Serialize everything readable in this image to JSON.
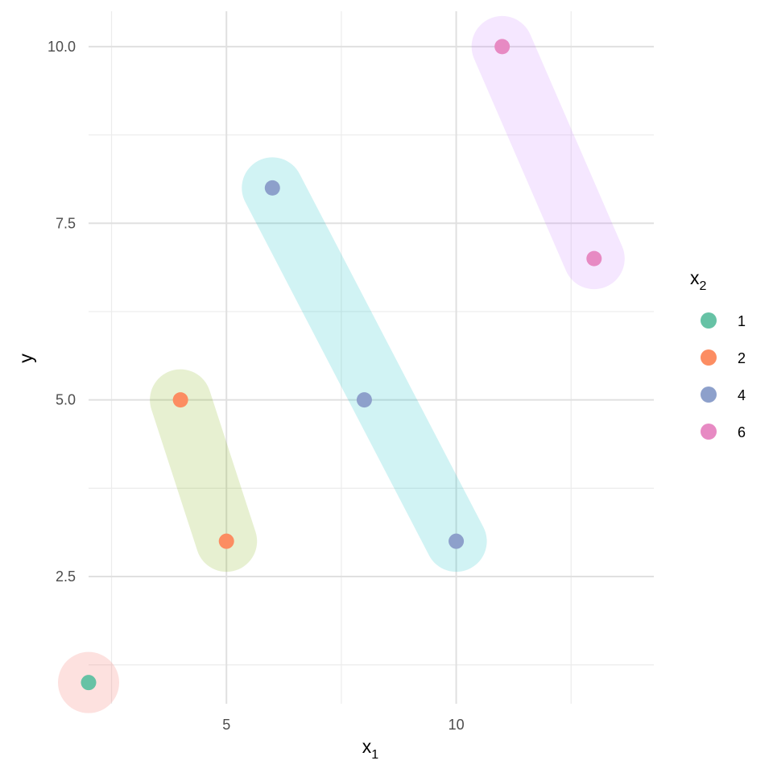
{
  "chart_data": {
    "type": "scatter",
    "title": "",
    "xlabel": "x",
    "xlabel_sub": "1",
    "ylabel": "y",
    "xlim": [
      2,
      14.3
    ],
    "ylim": [
      0.7,
      10.5
    ],
    "x_ticks": [
      5,
      10
    ],
    "x_tick_labels": [
      "5",
      "10"
    ],
    "y_ticks": [
      2.5,
      5.0,
      7.5,
      10.0
    ],
    "y_tick_labels": [
      "2.5",
      "5.0",
      "7.5",
      "10.0"
    ],
    "x_minor_ticks": [
      2.5,
      7.5,
      12.5
    ],
    "y_minor_ticks": [
      1.25,
      3.75,
      6.25,
      8.75
    ],
    "grid": true,
    "legend": {
      "title": "x",
      "title_sub": "2",
      "position": "right",
      "entries": [
        {
          "label": "1",
          "color": "#66c2a5"
        },
        {
          "label": "2",
          "color": "#fc8d62"
        },
        {
          "label": "4",
          "color": "#8da0cb"
        },
        {
          "label": "6",
          "color": "#e78ac3"
        }
      ]
    },
    "series": [
      {
        "name": "1",
        "color": "#66c2a5",
        "hull_color": "#f8766d",
        "x": [
          2
        ],
        "y": [
          1
        ]
      },
      {
        "name": "2",
        "color": "#fc8d62",
        "hull_color": "#7cae00",
        "x": [
          4,
          5
        ],
        "y": [
          5,
          3
        ]
      },
      {
        "name": "4",
        "color": "#8da0cb",
        "hull_color": "#00bfc4",
        "x": [
          6,
          8,
          10
        ],
        "y": [
          8,
          5,
          3
        ]
      },
      {
        "name": "6",
        "color": "#e78ac3",
        "hull_color": "#c77cff",
        "x": [
          11,
          13
        ],
        "y": [
          10,
          7
        ]
      }
    ]
  }
}
